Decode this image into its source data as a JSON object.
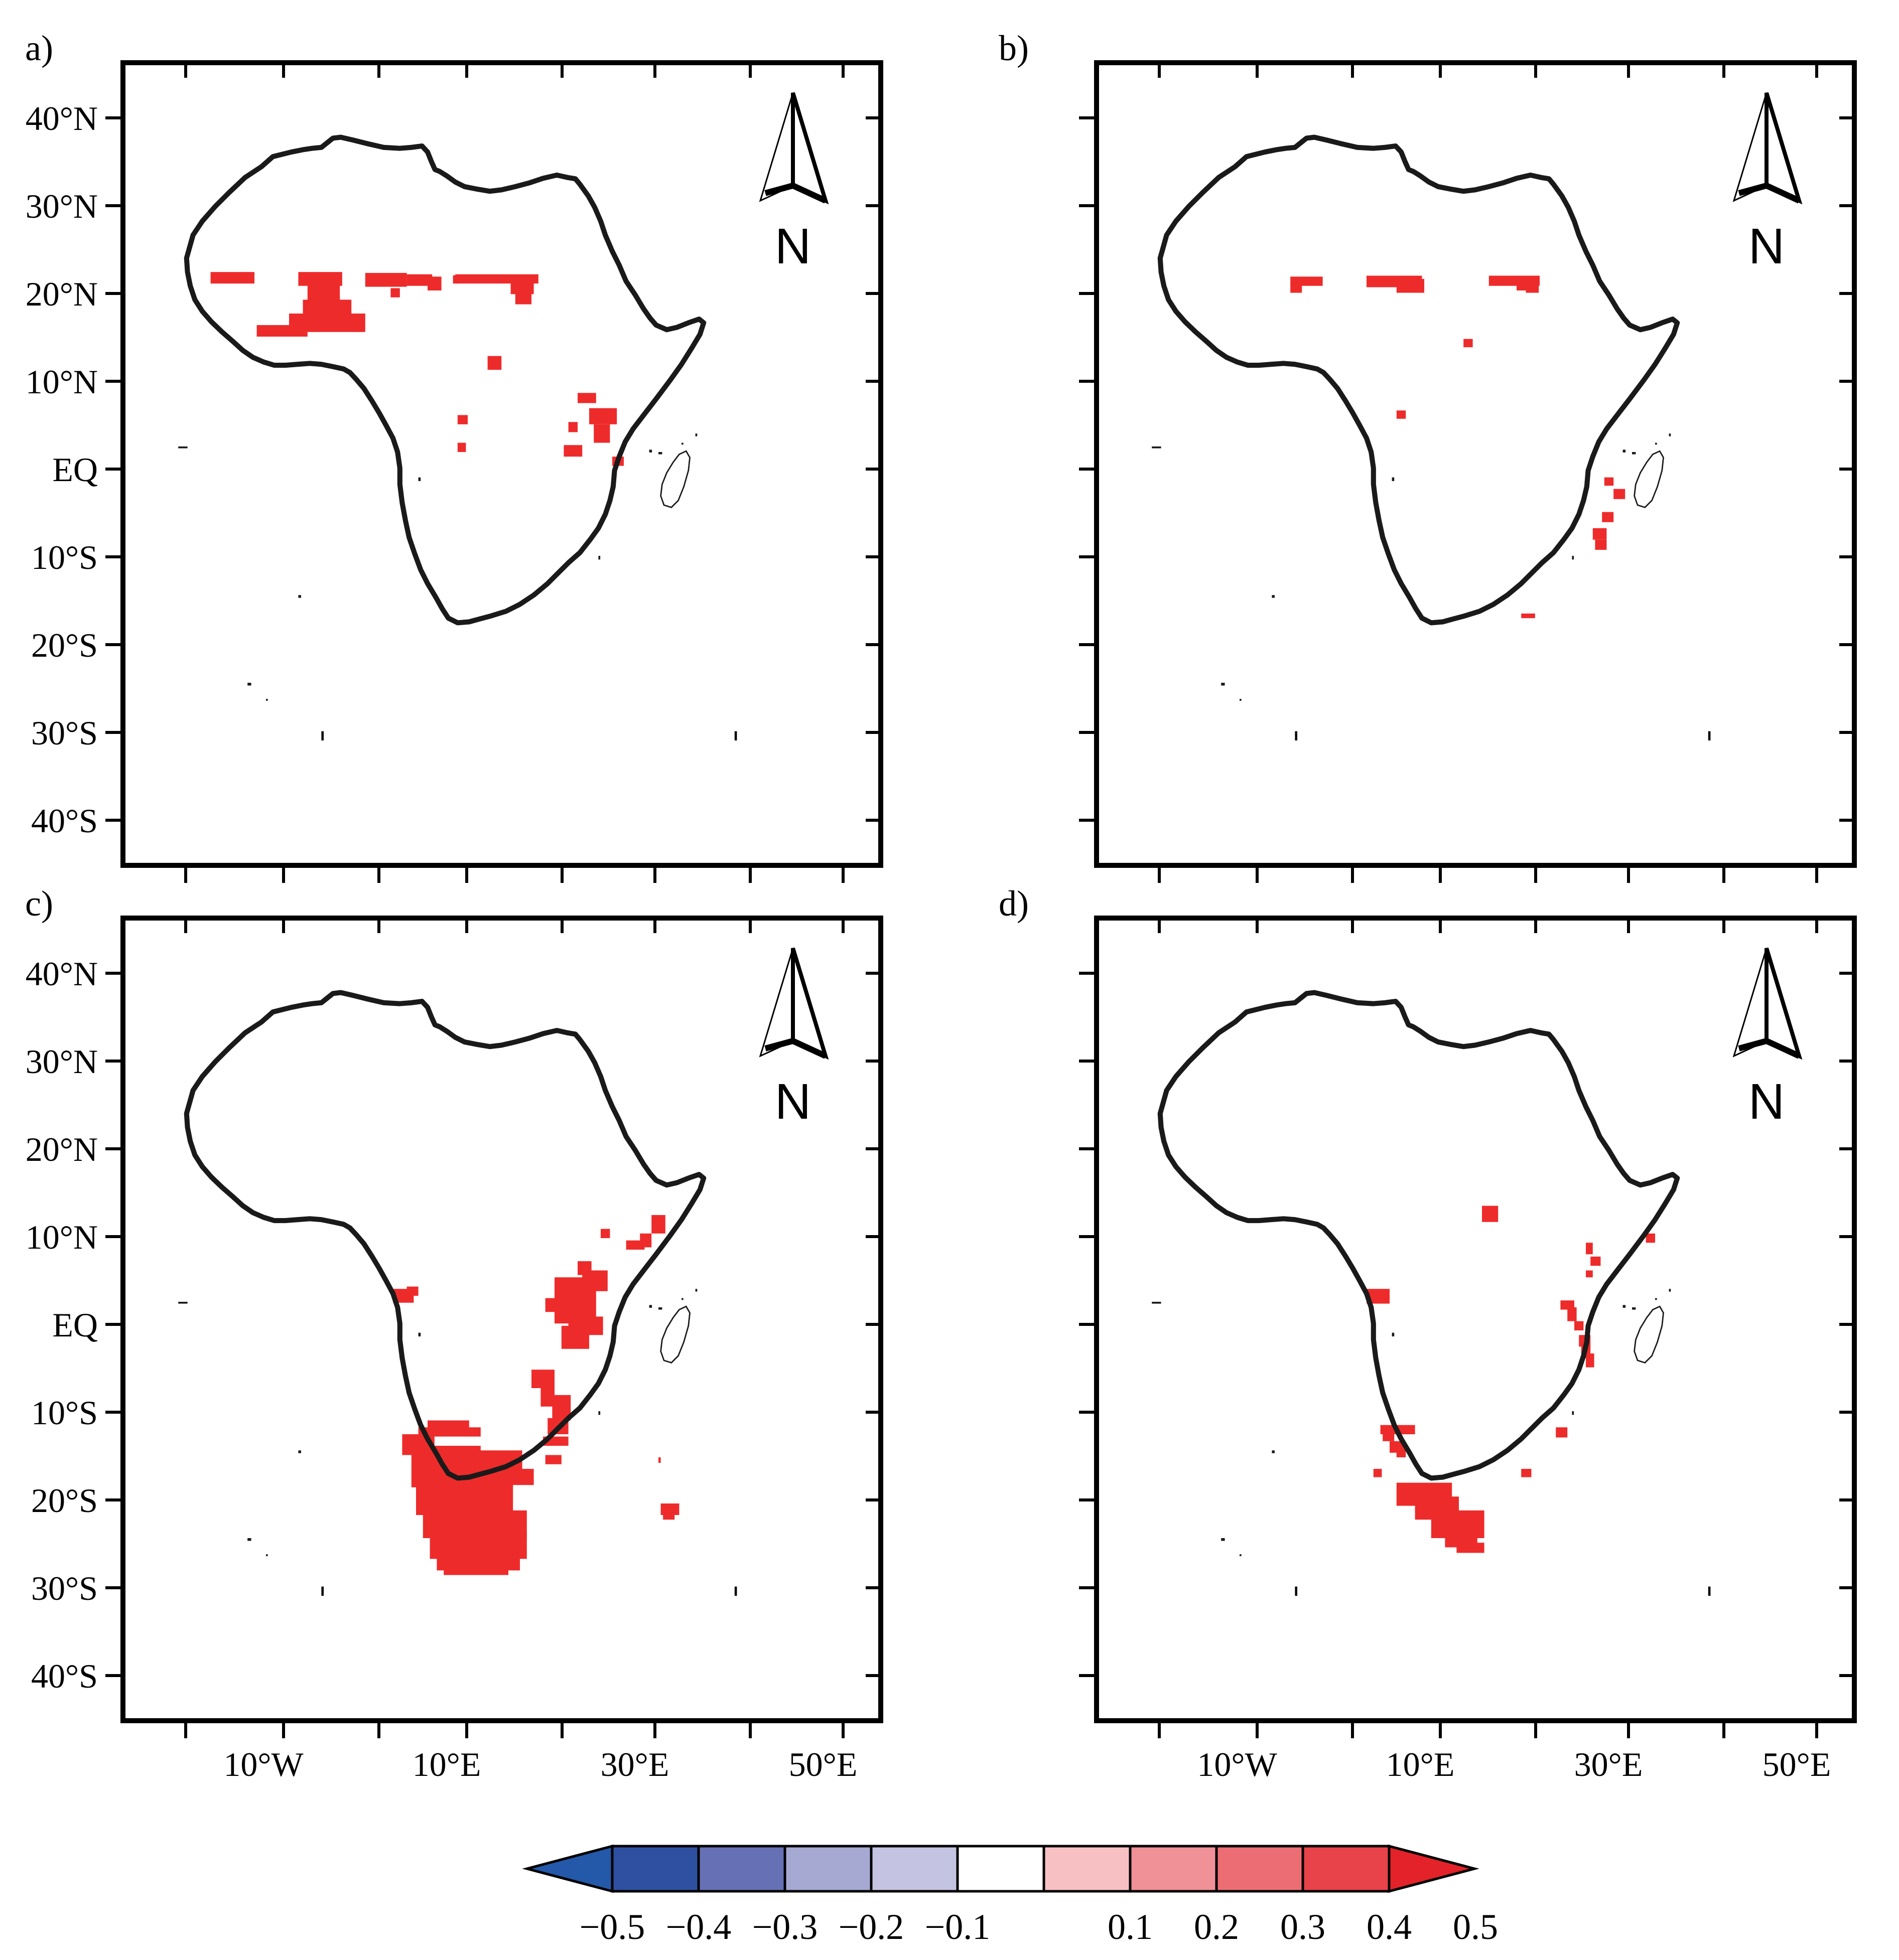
{
  "figure": {
    "title": "",
    "lat_labels": [
      "40°N",
      "30°N",
      "20°N",
      "10°N",
      "EQ",
      "10°S",
      "20°S",
      "30°S",
      "40°S"
    ],
    "lon_labels": [
      "10°W",
      "10°E",
      "30°E",
      "50°E"
    ],
    "north_arrow_label": "N",
    "panels": [
      {
        "id": "a",
        "label": "a)",
        "show_lat_labels": true,
        "show_lon_labels": false
      },
      {
        "id": "b",
        "label": "b)",
        "show_lat_labels": false,
        "show_lon_labels": false
      },
      {
        "id": "c",
        "label": "c)",
        "show_lat_labels": true,
        "show_lon_labels": true
      },
      {
        "id": "d",
        "label": "d)",
        "show_lat_labels": false,
        "show_lon_labels": true
      }
    ]
  },
  "colorbar": {
    "ticks": [
      "-0.5",
      "-0.4",
      "-0.3",
      "-0.2",
      "-0.1",
      "0.1",
      "0.2",
      "0.3",
      "0.4",
      "0.5"
    ],
    "colors": [
      "#2458a8",
      "#2f50a0",
      "#6670b4",
      "#a6a9d2",
      "#c4c3e1",
      "#ffffff",
      "#f7c0c2",
      "#f09097",
      "#ec6e74",
      "#e8424a",
      "#e32229"
    ]
  },
  "colors": {
    "significant": "#ee2b2b",
    "coast": "#1a1a1a",
    "frame": "#000000"
  }
}
